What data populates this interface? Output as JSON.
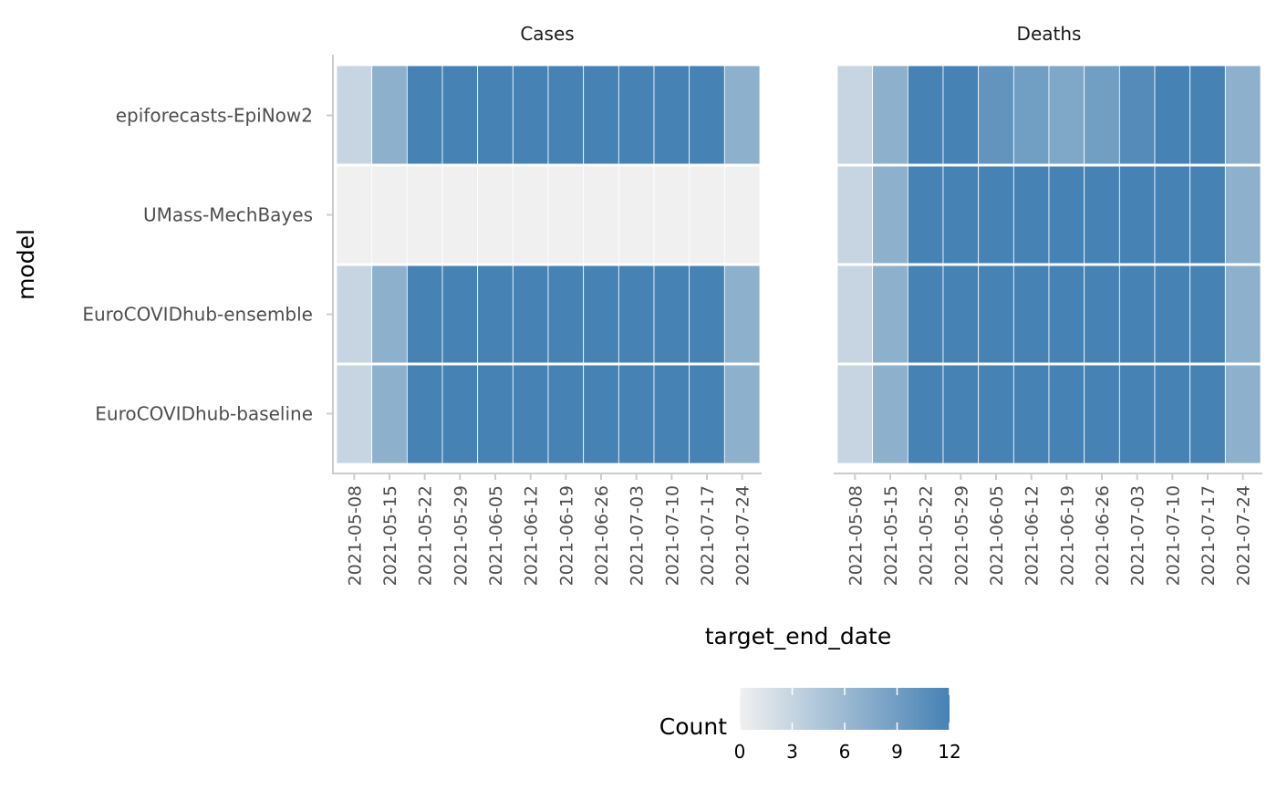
{
  "chart_data": {
    "type": "heatmap",
    "facets": [
      "Cases",
      "Deaths"
    ],
    "xlabel": "target_end_date",
    "ylabel": "model",
    "x_categories": [
      "2021-05-08",
      "2021-05-15",
      "2021-05-22",
      "2021-05-29",
      "2021-06-05",
      "2021-06-12",
      "2021-06-19",
      "2021-06-26",
      "2021-07-03",
      "2021-07-10",
      "2021-07-17",
      "2021-07-24"
    ],
    "models": [
      "epiforecasts-EpiNow2",
      "UMass-MechBayes",
      "EuroCOVIDhub-ensemble",
      "EuroCOVIDhub-baseline"
    ],
    "values": {
      "Cases": [
        [
          3,
          7,
          12,
          12,
          12,
          12,
          12,
          12,
          12,
          12,
          12,
          7
        ],
        [
          0,
          0,
          0,
          0,
          0,
          0,
          0,
          0,
          0,
          0,
          0,
          0
        ],
        [
          3,
          7,
          12,
          12,
          12,
          12,
          12,
          12,
          12,
          12,
          12,
          7
        ],
        [
          3,
          7,
          12,
          12,
          12,
          12,
          12,
          12,
          12,
          12,
          12,
          7
        ]
      ],
      "Deaths": [
        [
          3,
          7,
          12,
          12,
          10,
          9,
          8,
          9,
          11,
          12,
          12,
          7
        ],
        [
          3,
          7,
          12,
          12,
          12,
          12,
          12,
          12,
          12,
          12,
          12,
          7
        ],
        [
          3,
          7,
          12,
          12,
          12,
          12,
          12,
          12,
          12,
          12,
          12,
          7
        ],
        [
          3,
          7,
          12,
          12,
          12,
          12,
          12,
          12,
          12,
          12,
          12,
          7
        ]
      ]
    },
    "legend": {
      "title": "Count",
      "breaks": [
        "0",
        "3",
        "6",
        "9",
        "12"
      ],
      "range": [
        0,
        12
      ],
      "low_color": "#f0f0f0",
      "high_color": "#4682b4",
      "placement": "bottom"
    }
  }
}
